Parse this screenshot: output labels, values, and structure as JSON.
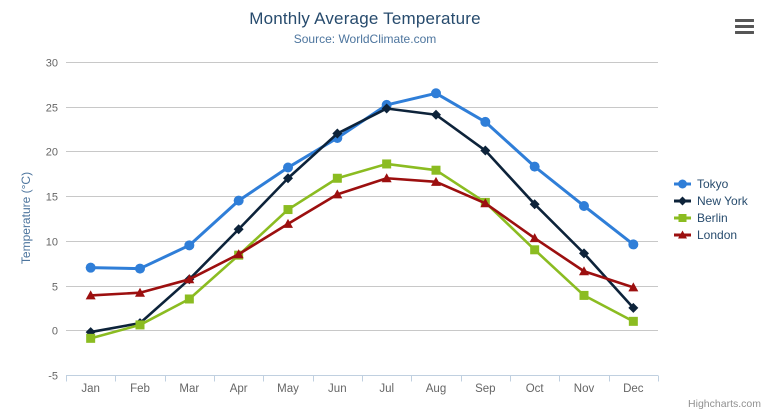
{
  "chart": {
    "credits": "Highcharts.com",
    "menu_icon": "hamburger-icon"
  },
  "colors": {
    "title": "#274b6d",
    "subtitle": "#4d759e",
    "axis_title": "#4d759e",
    "tick_label": "#666666",
    "grid": "#c8c8c8",
    "axis_line": "#c0d0e0",
    "legend_text": "#274b6d",
    "credits_text": "#909090",
    "background": "#ffffff"
  },
  "chart_data": {
    "type": "line",
    "title": "Monthly Average Temperature",
    "subtitle": "Source: WorldClimate.com",
    "xlabel": "",
    "ylabel": "Temperature (°C)",
    "ylim": [
      -5,
      30
    ],
    "ytick_step": 5,
    "grid": true,
    "legend_position": "right",
    "categories": [
      "Jan",
      "Feb",
      "Mar",
      "Apr",
      "May",
      "Jun",
      "Jul",
      "Aug",
      "Sep",
      "Oct",
      "Nov",
      "Dec"
    ],
    "series": [
      {
        "name": "Tokyo",
        "color": "#2f7ed8",
        "marker": "circle",
        "values": [
          7.0,
          6.9,
          9.5,
          14.5,
          18.2,
          21.5,
          25.2,
          26.5,
          23.3,
          18.3,
          13.9,
          9.6
        ]
      },
      {
        "name": "New York",
        "color": "#0d233a",
        "marker": "diamond",
        "values": [
          -0.2,
          0.8,
          5.7,
          11.3,
          17.0,
          22.0,
          24.8,
          24.1,
          20.1,
          14.1,
          8.6,
          2.5
        ]
      },
      {
        "name": "Berlin",
        "color": "#8bbc21",
        "marker": "square",
        "values": [
          -0.9,
          0.6,
          3.5,
          8.4,
          13.5,
          17.0,
          18.6,
          17.9,
          14.3,
          9.0,
          3.9,
          1.0
        ]
      },
      {
        "name": "London",
        "color": "#9c0f0f",
        "marker": "triangle",
        "values": [
          3.9,
          4.2,
          5.7,
          8.5,
          11.9,
          15.2,
          17.0,
          16.6,
          14.2,
          10.3,
          6.6,
          4.8
        ]
      }
    ]
  }
}
